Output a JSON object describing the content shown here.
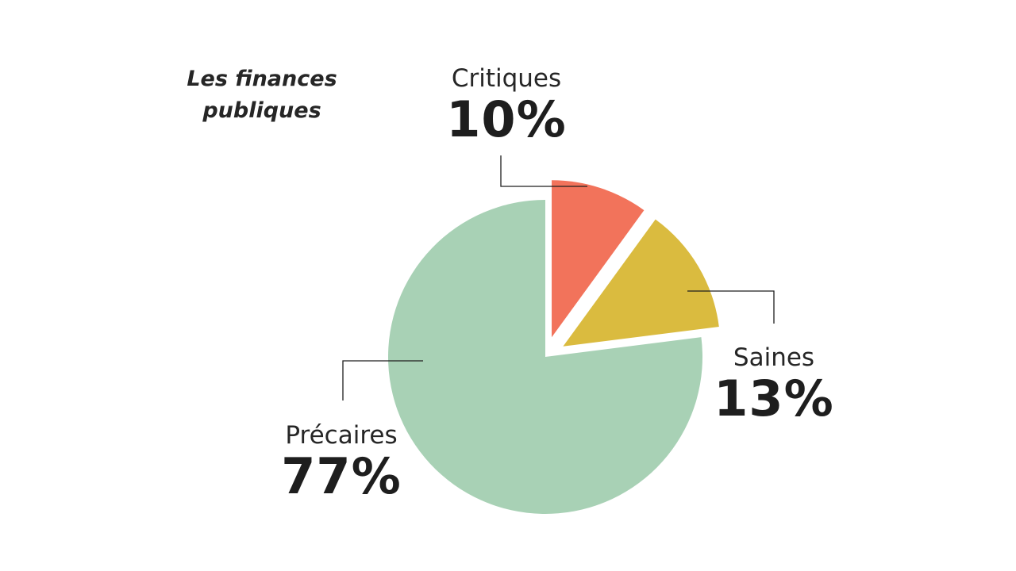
{
  "chart_data": {
    "type": "pie",
    "title_lines": [
      "Les finances",
      "publiques"
    ],
    "slices": [
      {
        "label": "Critiques",
        "value": 10,
        "value_label": "10%",
        "color": "#f2735b",
        "exploded": true
      },
      {
        "label": "Saines",
        "value": 13,
        "value_label": "13%",
        "color": "#dabb3f",
        "exploded": true
      },
      {
        "label": "Précaires",
        "value": 77,
        "value_label": "77%",
        "color": "#a8d1b5",
        "exploded": false
      }
    ],
    "start_angle_deg": 0,
    "direction": "clockwise"
  }
}
